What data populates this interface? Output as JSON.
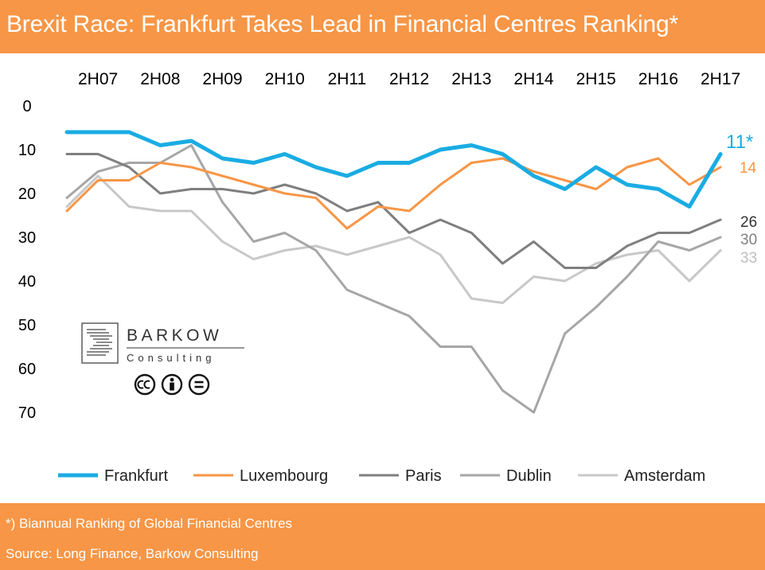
{
  "title": "Brexit Race: Frankfurt Takes Lead in Financial Centres Ranking*",
  "footer": {
    "note": "*) Biannual Ranking of Global Financial Centres",
    "source": "Source: Long Finance, Barkow Consulting"
  },
  "logo": {
    "name": "BARKOW",
    "sub": "Consulting",
    "license_icons": [
      "cc-icon",
      "by-icon",
      "nd-icon"
    ]
  },
  "chart_data": {
    "type": "line",
    "title": "Brexit Race: Frankfurt Takes Lead in Financial Centres Ranking*",
    "xlabel": "",
    "ylabel": "",
    "x_ticks": [
      "2H07",
      "2H08",
      "2H09",
      "2H10",
      "2H11",
      "2H12",
      "2H13",
      "2H14",
      "2H15",
      "2H16",
      "2H17"
    ],
    "x_axis_position": "top",
    "y_ticks": [
      0,
      10,
      20,
      30,
      40,
      50,
      60,
      70
    ],
    "ylim": [
      0,
      70
    ],
    "y_inverted": true,
    "grid": false,
    "legend_position": "bottom",
    "periods": [
      "1H07",
      "2H07",
      "1H08",
      "2H08",
      "1H09",
      "2H09",
      "1H10",
      "2H10",
      "1H11",
      "2H11",
      "1H12",
      "2H12",
      "1H13",
      "2H13",
      "1H14",
      "2H14",
      "1H15",
      "2H15",
      "1H16",
      "2H16",
      "1H17",
      "2H17"
    ],
    "series": [
      {
        "name": "Frankfurt",
        "color": "#1AACE3",
        "end_label": "11*",
        "values": [
          6,
          6,
          6,
          9,
          8,
          12,
          13,
          11,
          14,
          16,
          13,
          13,
          10,
          9,
          11,
          16,
          19,
          14,
          18,
          19,
          23,
          11
        ]
      },
      {
        "name": "Luxembourg",
        "color": "#F79646",
        "end_label": "14",
        "values": [
          24,
          17,
          17,
          13,
          14,
          16,
          18,
          20,
          21,
          28,
          23,
          24,
          18,
          13,
          12,
          15,
          17,
          19,
          14,
          12,
          18,
          14
        ]
      },
      {
        "name": "Paris",
        "color": "#7F7F7F",
        "end_label": "26",
        "values": [
          11,
          11,
          14,
          20,
          19,
          19,
          20,
          18,
          20,
          24,
          22,
          29,
          26,
          29,
          36,
          31,
          37,
          37,
          32,
          29,
          29,
          26
        ]
      },
      {
        "name": "Dublin",
        "color": "#A6A6A6",
        "end_label": "30",
        "values": [
          21,
          15,
          13,
          13,
          9,
          22,
          31,
          29,
          33,
          42,
          45,
          48,
          55,
          55,
          65,
          70,
          52,
          46,
          39,
          31,
          33,
          30
        ]
      },
      {
        "name": "Amsterdam",
        "color": "#C8C8C8",
        "end_label": "33",
        "values": [
          23,
          16,
          23,
          24,
          24,
          31,
          35,
          33,
          32,
          34,
          32,
          30,
          34,
          44,
          45,
          39,
          40,
          36,
          34,
          33,
          40,
          33
        ]
      }
    ]
  }
}
